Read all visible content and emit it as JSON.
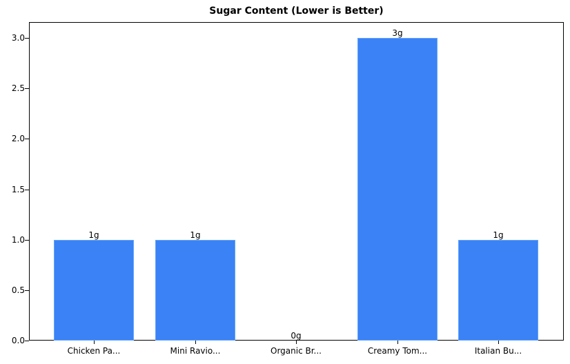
{
  "chart_data": {
    "type": "bar",
    "title": "Sugar Content (Lower is Better)",
    "xlabel": "",
    "ylabel": "",
    "categories": [
      "Chicken Pa...",
      "Mini Ravio...",
      "Organic Br...",
      "Creamy Tom...",
      "Italian Bu..."
    ],
    "values": [
      1,
      1,
      0,
      3,
      1
    ],
    "value_labels": [
      "1g",
      "1g",
      "0g",
      "3g",
      "1g"
    ],
    "ylim": [
      0,
      3.15
    ],
    "yticks": [
      "0.0",
      "0.5",
      "1.0",
      "1.5",
      "2.0",
      "2.5",
      "3.0"
    ],
    "grid": false,
    "legend": null,
    "bar_color": "#3b82f6",
    "bar_edge_color": "#60a5fa"
  }
}
